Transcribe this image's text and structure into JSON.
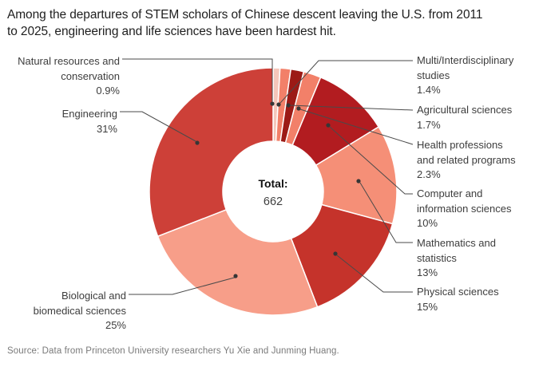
{
  "title_lines": [
    "Among the departures of STEM scholars of Chinese descent leaving the U.S. from 2011",
    "to 2025, engineering and life sciences have been hardest hit."
  ],
  "source": "Source: Data from Princeton University researchers Yu Xie and Junming Huang.",
  "chart_data": {
    "type": "pie",
    "subtype": "donut",
    "title": "Among the departures of STEM scholars of Chinese descent leaving the U.S. from 2011 to 2025, engineering and life sciences have been hardest hit.",
    "total_label": "Total:",
    "total_value": "662",
    "direction": "clockwise",
    "start_angle_deg": 0,
    "legend_position": "callout-labels",
    "slices": [
      {
        "id": "natural-resources",
        "label": "Natural resources and conservation",
        "label_lines": [
          "Natural resources and",
          "conservation"
        ],
        "pct_label": "0.9%",
        "value": 0.9,
        "color": "#f5c6ba"
      },
      {
        "id": "multi-interdisciplinary",
        "label": "Multi/Interdisciplinary studies",
        "label_lines": [
          "Multi/Interdisciplinary",
          "studies"
        ],
        "pct_label": "1.4%",
        "value": 1.4,
        "color": "#f28069"
      },
      {
        "id": "agricultural",
        "label": "Agricultural sciences",
        "label_lines": [
          "Agricultural sciences"
        ],
        "pct_label": "1.7%",
        "value": 1.7,
        "color": "#9c1a16"
      },
      {
        "id": "health",
        "label": "Health professions and related programs",
        "label_lines": [
          "Health professions",
          "and related programs"
        ],
        "pct_label": "2.3%",
        "value": 2.3,
        "color": "#f28069"
      },
      {
        "id": "computer",
        "label": "Computer and information sciences",
        "label_lines": [
          "Computer and",
          "information sciences"
        ],
        "pct_label": "10%",
        "value": 10,
        "color": "#b21c20"
      },
      {
        "id": "math",
        "label": "Mathematics and statistics",
        "label_lines": [
          "Mathematics and",
          "statistics"
        ],
        "pct_label": "13%",
        "value": 13,
        "color": "#f58f77"
      },
      {
        "id": "physical",
        "label": "Physical sciences",
        "label_lines": [
          "Physical sciences"
        ],
        "pct_label": "15%",
        "value": 15,
        "color": "#c5332b"
      },
      {
        "id": "biological",
        "label": "Biological and biomedical sciences",
        "label_lines": [
          "Biological and",
          "biomedical sciences"
        ],
        "pct_label": "25%",
        "value": 25,
        "color": "#f79e89"
      },
      {
        "id": "engineering",
        "label": "Engineering",
        "label_lines": [
          "Engineering"
        ],
        "pct_label": "31%",
        "value": 31,
        "color": "#cd4038"
      }
    ]
  },
  "colors": {
    "leader_line": "#4a4a4a",
    "leader_dot": "#363636",
    "slice_gap": "#ffffff",
    "hole": "#ffffff"
  }
}
